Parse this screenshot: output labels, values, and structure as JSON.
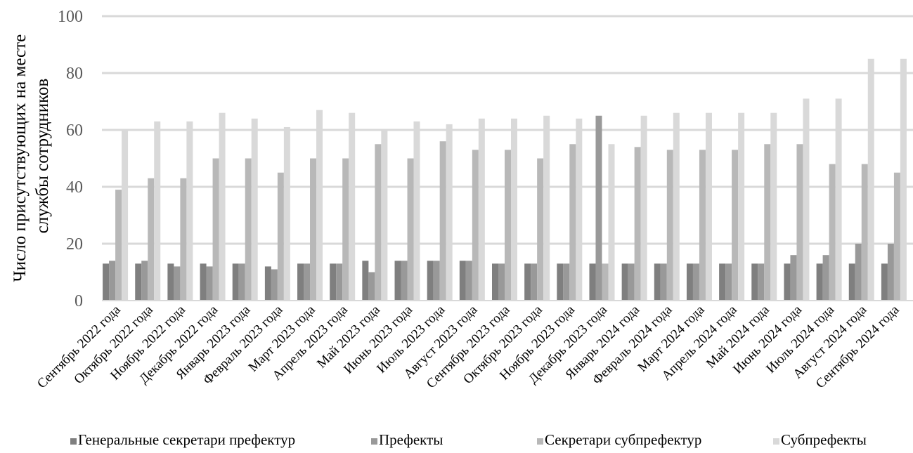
{
  "chart_data": {
    "type": "bar",
    "ylabel": [
      "Число присутствующих на месте",
      "службы сотрудников"
    ],
    "ylim": [
      0,
      100
    ],
    "yticks": [
      0,
      20,
      40,
      60,
      80,
      100
    ],
    "grid": true,
    "legend_position": "bottom",
    "categories": [
      "Сентябрь 2022 года",
      "Октябрь 2022 года",
      "Ноябрь 2022 года",
      "Декабрь 2022 года",
      "Январь 2023 года",
      "Февраль 2023 года",
      "Март 2023 года",
      "Апрель 2023 года",
      "Май 2023 года",
      "Июнь 2023 года",
      "Июль 2023 года",
      "Август 2023 года",
      "Сентябрь 2023 года",
      "Октябрь 2023 года",
      "Ноябрь 2023 года",
      "Декабрь 2023 года",
      "Январь 2024 года",
      "Февраль 2024 года",
      "Март 2024 года",
      "Апрель 2024 года",
      "Май 2024 года",
      "Июнь 2024 года",
      "Июль 2024 года",
      "Август 2024 года",
      "Сентябрь 2024 года"
    ],
    "series": [
      {
        "name": "Генеральные секретари префектур",
        "color": "#7f7f7f",
        "values": [
          13,
          13,
          13,
          13,
          13,
          12,
          13,
          13,
          14,
          14,
          14,
          14,
          13,
          13,
          13,
          13,
          13,
          13,
          13,
          13,
          13,
          13,
          13,
          13,
          13
        ]
      },
      {
        "name": "Префекты",
        "color": "#999999",
        "values": [
          14,
          14,
          12,
          12,
          13,
          11,
          13,
          13,
          10,
          14,
          14,
          14,
          13,
          13,
          13,
          65,
          13,
          13,
          13,
          13,
          13,
          16,
          16,
          20,
          20
        ]
      },
      {
        "name": "Секретари субпрефектур",
        "color": "#b8b8b8",
        "values": [
          39,
          43,
          43,
          50,
          50,
          45,
          50,
          50,
          55,
          50,
          56,
          53,
          53,
          50,
          55,
          13,
          54,
          53,
          53,
          53,
          55,
          55,
          48,
          48,
          45
        ]
      },
      {
        "name": "Субпрефекты",
        "color": "#d9d9d9",
        "values": [
          60,
          63,
          63,
          66,
          64,
          61,
          67,
          66,
          60,
          63,
          62,
          64,
          64,
          65,
          64,
          55,
          65,
          66,
          66,
          66,
          66,
          71,
          71,
          85,
          85
        ]
      }
    ]
  }
}
